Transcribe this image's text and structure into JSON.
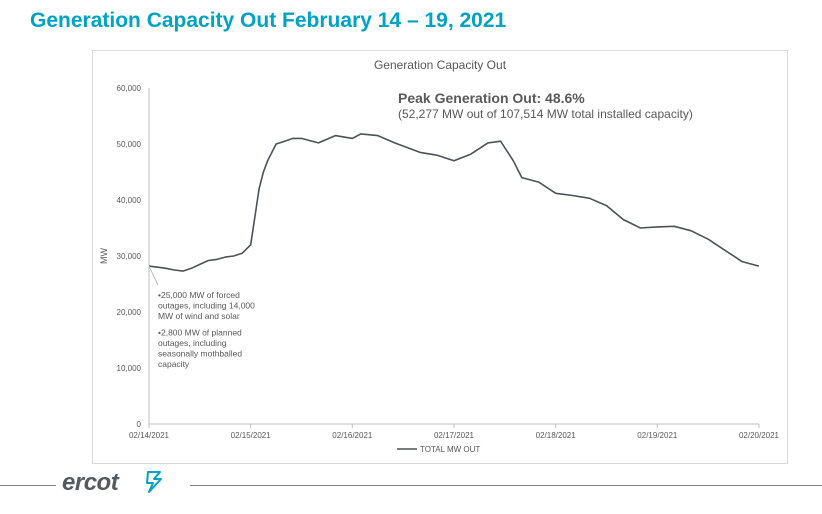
{
  "slide_title": "Generation Capacity Out February 14 – 19, 2021",
  "logo": {
    "text": "ercot",
    "icon": "ercot-lightning-icon"
  },
  "colors": {
    "title": "#00a3c4",
    "line": "#4d5256",
    "axis": "#bfbfbf",
    "text": "#595959"
  },
  "chart_data": {
    "type": "line",
    "title": "Generation Capacity Out",
    "xlabel": "",
    "ylabel": "MW",
    "ylim": [
      0,
      60000
    ],
    "yticks": [
      0,
      10000,
      20000,
      30000,
      40000,
      50000,
      60000
    ],
    "ytick_labels": [
      "0",
      "10,000",
      "20,000",
      "30,000",
      "40,000",
      "50,000",
      "60,000"
    ],
    "xlim": [
      "2021-02-14",
      "2021-02-20"
    ],
    "xtick_labels": [
      "02/14/2021",
      "02/15/2021",
      "02/16/2021",
      "02/17/2021",
      "02/18/2021",
      "02/19/2021",
      "02/20/2021"
    ],
    "grid": false,
    "legend_position": "bottom",
    "series": [
      {
        "name": "TOTAL MW OUT",
        "x": [
          "2021-02-14 00:00",
          "2021-02-14 02:00",
          "2021-02-14 04:00",
          "2021-02-14 06:00",
          "2021-02-14 08:00",
          "2021-02-14 10:00",
          "2021-02-14 12:00",
          "2021-02-14 14:00",
          "2021-02-14 16:00",
          "2021-02-14 18:00",
          "2021-02-14 20:00",
          "2021-02-14 22:00",
          "2021-02-15 00:00",
          "2021-02-15 01:00",
          "2021-02-15 02:00",
          "2021-02-15 03:00",
          "2021-02-15 04:00",
          "2021-02-15 06:00",
          "2021-02-15 08:00",
          "2021-02-15 10:00",
          "2021-02-15 12:00",
          "2021-02-15 16:00",
          "2021-02-15 20:00",
          "2021-02-16 00:00",
          "2021-02-16 02:00",
          "2021-02-16 06:00",
          "2021-02-16 10:00",
          "2021-02-16 16:00",
          "2021-02-16 20:00",
          "2021-02-17 00:00",
          "2021-02-17 04:00",
          "2021-02-17 08:00",
          "2021-02-17 11:00",
          "2021-02-17 14:00",
          "2021-02-17 16:00",
          "2021-02-17 20:00",
          "2021-02-18 00:00",
          "2021-02-18 04:00",
          "2021-02-18 08:00",
          "2021-02-18 12:00",
          "2021-02-18 16:00",
          "2021-02-18 20:00",
          "2021-02-19 00:00",
          "2021-02-19 04:00",
          "2021-02-19 08:00",
          "2021-02-19 12:00",
          "2021-02-19 16:00",
          "2021-02-19 20:00",
          "2021-02-20 00:00"
        ],
        "values": [
          28200,
          28000,
          27800,
          27500,
          27300,
          27800,
          28500,
          29200,
          29400,
          29800,
          30000,
          30500,
          32000,
          37000,
          42000,
          45000,
          47000,
          50000,
          50500,
          51000,
          51000,
          50200,
          51500,
          51000,
          51800,
          51500,
          50200,
          48500,
          48000,
          47000,
          48200,
          50200,
          50500,
          47000,
          44000,
          43200,
          41200,
          40800,
          40300,
          39000,
          36500,
          35000,
          35200,
          35300,
          34500,
          33000,
          31000,
          29000,
          28200
        ]
      }
    ],
    "annotations": {
      "peak_title": "Peak Generation Out: 48.6%",
      "peak_subtitle": "(52,277 MW out of 107,514 MW total installed capacity)",
      "notes": [
        [
          "•25,000 MW of forced",
          "outages, including 14,000",
          "MW of wind and solar"
        ],
        [
          "•2,800 MW of planned",
          "outages, including",
          "seasonally mothballed",
          "capacity"
        ]
      ]
    }
  }
}
